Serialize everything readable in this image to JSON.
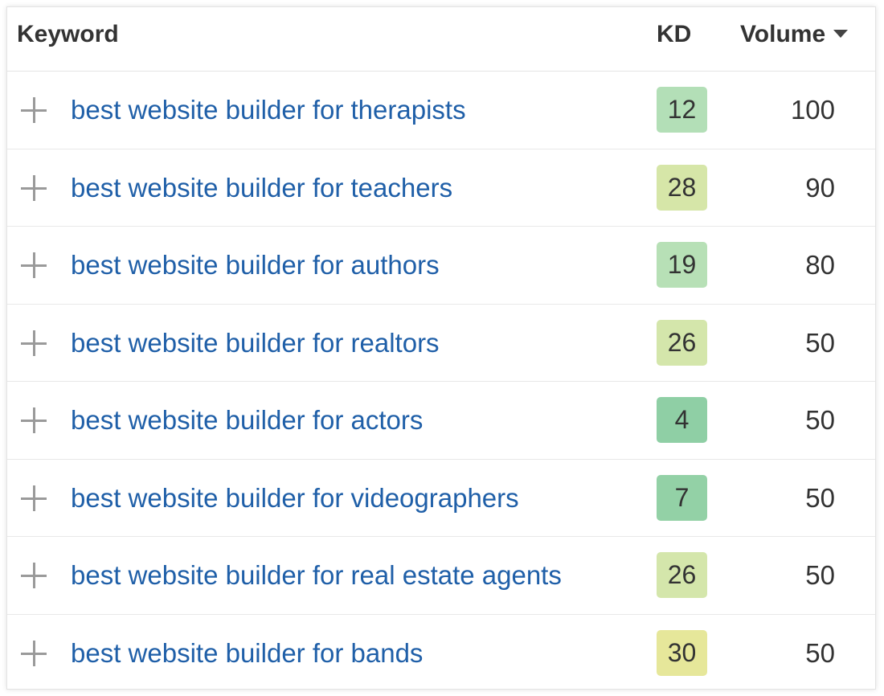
{
  "header": {
    "keyword_label": "Keyword",
    "kd_label": "KD",
    "volume_label": "Volume",
    "sort_icon": "caret-down-icon"
  },
  "rows": [
    {
      "keyword": "best website builder for therapists",
      "kd": "12",
      "kd_color": "#b3dfb7",
      "volume": "100"
    },
    {
      "keyword": "best website builder for teachers",
      "kd": "28",
      "kd_color": "#d6e6a8",
      "volume": "90"
    },
    {
      "keyword": "best website builder for authors",
      "kd": "19",
      "kd_color": "#b7e0b6",
      "volume": "80"
    },
    {
      "keyword": "best website builder for realtors",
      "kd": "26",
      "kd_color": "#d4e6ab",
      "volume": "50"
    },
    {
      "keyword": "best website builder for actors",
      "kd": "4",
      "kd_color": "#8fcfa5",
      "volume": "50"
    },
    {
      "keyword": "best website builder for videographers",
      "kd": "7",
      "kd_color": "#93d1a6",
      "volume": "50"
    },
    {
      "keyword": "best website builder for real estate agents",
      "kd": "26",
      "kd_color": "#d4e6ab",
      "volume": "50"
    },
    {
      "keyword": "best website builder for bands",
      "kd": "30",
      "kd_color": "#e6e79a",
      "volume": "50"
    }
  ],
  "row_icon": "plus-icon"
}
